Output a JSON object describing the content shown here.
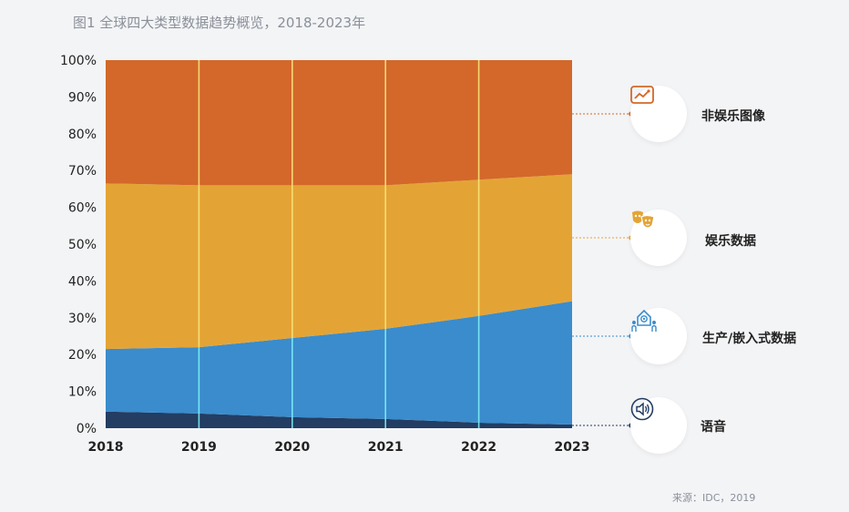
{
  "title": "图1 全球四大类型数据趋势概览，2018-2023年",
  "source": "来源：IDC，2019",
  "colors": {
    "non_ent_image": "#d3682a",
    "entertainment": "#e4a435",
    "embedded": "#3a8ccd",
    "voice": "#233d63",
    "grid_yellow": "#f7e57a",
    "grid_cyan": "#7ff0f5"
  },
  "legend": [
    {
      "key": "non_ent_image",
      "label": "非娱乐图像",
      "icon": "image-chart-icon",
      "color": "#d3682a"
    },
    {
      "key": "entertainment",
      "label": "娱乐数据",
      "icon": "theater-masks-icon",
      "color": "#e4a435"
    },
    {
      "key": "embedded",
      "label": "生产/嵌入式数据",
      "icon": "iot-device-icon",
      "color": "#3a8ccd"
    },
    {
      "key": "voice",
      "label": "语音",
      "icon": "speaker-icon",
      "color": "#233d63"
    }
  ],
  "chart_data": {
    "type": "area",
    "stacked": true,
    "x": [
      "2018",
      "2019",
      "2020",
      "2021",
      "2022",
      "2023"
    ],
    "series": [
      {
        "name": "语音",
        "values": [
          4.5,
          4,
          3,
          2.5,
          1.5,
          1
        ]
      },
      {
        "name": "生产/嵌入式数据",
        "values": [
          17,
          18,
          21.5,
          24.5,
          29,
          33.5
        ]
      },
      {
        "name": "娱乐数据",
        "values": [
          45,
          44,
          41.5,
          39,
          37,
          34.5
        ]
      },
      {
        "name": "非娱乐图像",
        "values": [
          33.5,
          34,
          34,
          34,
          32.5,
          31
        ]
      }
    ],
    "ylim": [
      0,
      100
    ],
    "yticks": [
      "0%",
      "10%",
      "20%",
      "30%",
      "40%",
      "50%",
      "60%",
      "70%",
      "80%",
      "90%",
      "100%"
    ],
    "title": "图1 全球四大类型数据趋势概览，2018-2023年"
  }
}
